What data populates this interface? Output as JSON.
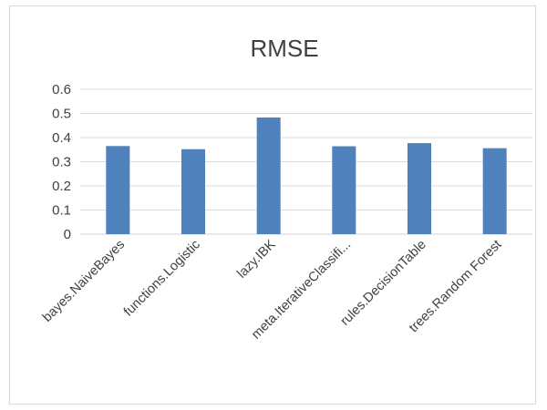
{
  "chart_data": {
    "type": "bar",
    "title": "RMSE",
    "categories": [
      "bayes.NaiveBayes",
      "functions.Logistic",
      "lazy.IBK",
      "meta.IterativeClassifi...",
      "rules.DecisionTable",
      "trees.Random Forest"
    ],
    "values": [
      0.365,
      0.352,
      0.483,
      0.364,
      0.377,
      0.356
    ],
    "ylim": [
      0,
      0.6
    ],
    "yticks": [
      "0",
      "0.1",
      "0.2",
      "0.3",
      "0.4",
      "0.5",
      "0.6"
    ],
    "xlabel": "",
    "ylabel": "",
    "grid": true,
    "legend": "none",
    "bar_color": "#4f81bd",
    "grid_color": "#d9d9d9",
    "text_color": "#404040"
  }
}
